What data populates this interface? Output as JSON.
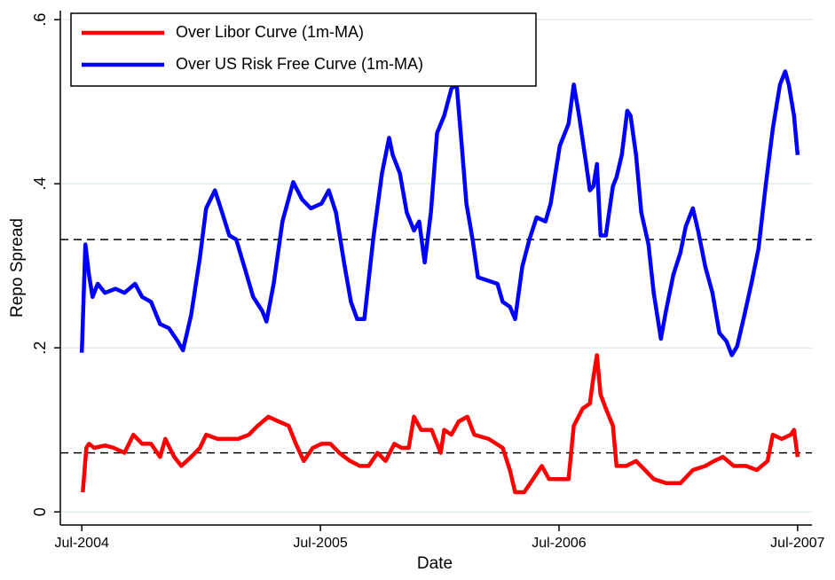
{
  "chart_data": {
    "type": "line",
    "x_label": "Date",
    "y_label": "Repo Spread",
    "xlim": [
      2004.41,
      2007.56
    ],
    "ylim": [
      -0.016,
      0.611
    ],
    "xticks": [
      {
        "value": 2004.5,
        "label": "Jul-2004"
      },
      {
        "value": 2005.5,
        "label": "Jul-2005"
      },
      {
        "value": 2006.5,
        "label": "Jul-2006"
      },
      {
        "value": 2007.5,
        "label": "Jul-2007"
      }
    ],
    "yticks": [
      0,
      {
        "value": 0.2,
        "label": ".2"
      },
      {
        "value": 0.4,
        "label": ".4"
      },
      {
        "value": 0.6,
        "label": ".6"
      }
    ],
    "grid": true,
    "legend": "top-left",
    "reference_lines": [
      0.332,
      0.072
    ],
    "series": [
      {
        "name": "Over Libor Curve (1m-MA)",
        "color": "#ff0000",
        "x": [
          2004.504,
          2004.519,
          2004.53,
          2004.552,
          2004.597,
          2004.634,
          2004.679,
          2004.716,
          2004.753,
          2004.79,
          2004.828,
          2004.85,
          2004.887,
          2004.917,
          2004.958,
          2004.995,
          2005.021,
          2005.069,
          2005.118,
          2005.155,
          2005.2,
          2005.237,
          2005.282,
          2005.326,
          2005.367,
          2005.397,
          2005.43,
          2005.468,
          2005.505,
          2005.542,
          2005.579,
          2005.624,
          2005.665,
          2005.702,
          2005.739,
          2005.773,
          2005.81,
          2005.84,
          2005.87,
          2005.892,
          2005.922,
          2005.966,
          2006.004,
          2006.019,
          2006.049,
          2006.079,
          2006.116,
          2006.145,
          2006.205,
          2006.264,
          2006.294,
          2006.316,
          2006.354,
          2006.391,
          2006.428,
          2006.458,
          2006.503,
          2006.54,
          2006.562,
          2006.599,
          2006.629,
          2006.644,
          2006.659,
          2006.674,
          2006.696,
          2006.726,
          2006.741,
          2006.782,
          2006.823,
          2006.86,
          2006.897,
          2006.949,
          2007.009,
          2007.061,
          2007.113,
          2007.15,
          2007.187,
          2007.232,
          2007.284,
          2007.329,
          2007.374,
          2007.396,
          2007.433,
          2007.471,
          2007.485,
          2007.5
        ],
        "values": [
          0.024,
          0.078,
          0.083,
          0.078,
          0.081,
          0.078,
          0.072,
          0.094,
          0.083,
          0.083,
          0.067,
          0.089,
          0.067,
          0.056,
          0.067,
          0.078,
          0.094,
          0.089,
          0.089,
          0.089,
          0.094,
          0.105,
          0.116,
          0.11,
          0.105,
          0.083,
          0.062,
          0.078,
          0.083,
          0.083,
          0.072,
          0.062,
          0.056,
          0.056,
          0.072,
          0.062,
          0.083,
          0.078,
          0.078,
          0.116,
          0.1,
          0.1,
          0.072,
          0.1,
          0.094,
          0.11,
          0.116,
          0.094,
          0.089,
          0.078,
          0.051,
          0.024,
          0.024,
          0.04,
          0.056,
          0.04,
          0.04,
          0.04,
          0.105,
          0.126,
          0.132,
          0.164,
          0.191,
          0.143,
          0.126,
          0.105,
          0.056,
          0.056,
          0.062,
          0.051,
          0.04,
          0.035,
          0.035,
          0.051,
          0.056,
          0.062,
          0.067,
          0.056,
          0.056,
          0.051,
          0.062,
          0.094,
          0.089,
          0.094,
          0.1,
          0.067
        ]
      },
      {
        "name": "Over US Risk Free Curve (1m-MA)",
        "color": "#0000ff",
        "x": [
          2004.5,
          2004.515,
          2004.53,
          2004.545,
          2004.567,
          2004.597,
          2004.641,
          2004.679,
          2004.723,
          2004.753,
          2004.79,
          2004.828,
          2004.865,
          2004.902,
          2004.924,
          2004.958,
          2004.995,
          2005.021,
          2005.058,
          2005.088,
          2005.118,
          2005.147,
          2005.181,
          2005.218,
          2005.256,
          2005.274,
          2005.304,
          2005.341,
          2005.386,
          2005.423,
          2005.46,
          2005.505,
          2005.535,
          2005.565,
          2005.602,
          2005.628,
          2005.654,
          2005.684,
          2005.721,
          2005.758,
          2005.788,
          2005.803,
          2005.833,
          2005.862,
          2005.892,
          2005.914,
          2005.937,
          2005.963,
          2005.989,
          2006.019,
          2006.049,
          2006.071,
          2006.093,
          2006.112,
          2006.138,
          2006.16,
          2006.242,
          2006.264,
          2006.294,
          2006.316,
          2006.346,
          2006.376,
          2006.406,
          2006.443,
          2006.465,
          2006.503,
          2006.54,
          2006.562,
          2006.584,
          2006.614,
          2006.629,
          2006.644,
          2006.659,
          2006.674,
          2006.696,
          2006.726,
          2006.741,
          2006.763,
          2006.786,
          2006.8,
          2006.823,
          2006.845,
          2006.875,
          2006.897,
          2006.927,
          2006.949,
          2006.979,
          2007.009,
          2007.031,
          2007.061,
          2007.083,
          2007.113,
          2007.143,
          2007.172,
          2007.202,
          2007.224,
          2007.247,
          2007.277,
          2007.306,
          2007.336,
          2007.366,
          2007.396,
          2007.426,
          2007.448,
          2007.463,
          2007.485,
          2007.5
        ],
        "values": [
          0.194,
          0.326,
          0.289,
          0.262,
          0.278,
          0.267,
          0.272,
          0.267,
          0.278,
          0.262,
          0.256,
          0.229,
          0.224,
          0.208,
          0.197,
          0.24,
          0.31,
          0.37,
          0.392,
          0.365,
          0.337,
          0.332,
          0.299,
          0.262,
          0.245,
          0.232,
          0.278,
          0.354,
          0.402,
          0.381,
          0.37,
          0.376,
          0.392,
          0.365,
          0.299,
          0.256,
          0.235,
          0.235,
          0.332,
          0.413,
          0.456,
          0.435,
          0.413,
          0.365,
          0.343,
          0.354,
          0.304,
          0.365,
          0.462,
          0.483,
          0.516,
          0.521,
          0.445,
          0.376,
          0.332,
          0.286,
          0.278,
          0.256,
          0.25,
          0.235,
          0.299,
          0.332,
          0.359,
          0.354,
          0.376,
          0.446,
          0.473,
          0.521,
          0.483,
          0.424,
          0.392,
          0.397,
          0.424,
          0.337,
          0.337,
          0.397,
          0.408,
          0.435,
          0.489,
          0.483,
          0.435,
          0.365,
          0.326,
          0.267,
          0.211,
          0.246,
          0.289,
          0.316,
          0.348,
          0.37,
          0.343,
          0.299,
          0.267,
          0.218,
          0.208,
          0.191,
          0.202,
          0.24,
          0.278,
          0.321,
          0.397,
          0.467,
          0.521,
          0.537,
          0.521,
          0.483,
          0.435
        ]
      }
    ]
  }
}
